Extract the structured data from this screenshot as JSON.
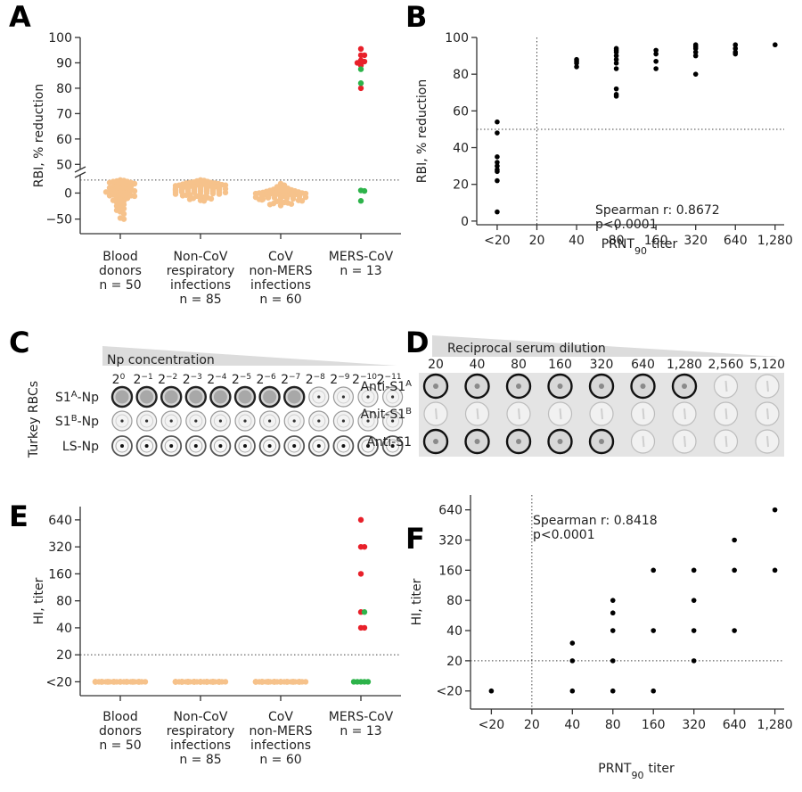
{
  "chart_data": [
    {
      "type": "strip",
      "letter": "A",
      "y_label": "RBI, % reduction",
      "categories": [
        [
          "Blood",
          "donors",
          "n = 50"
        ],
        [
          "Non-CoV",
          "respiratory",
          "infections",
          "n = 85"
        ],
        [
          "CoV",
          "non-MERS",
          "infections",
          "n = 60"
        ],
        [
          "MERS-CoV",
          "n = 13"
        ]
      ],
      "y_segments": [
        {
          "ylim": [
            -78,
            35
          ],
          "yticks": [
            0,
            {
              "value": -50,
              "label": "−50"
            }
          ]
        },
        {
          "ylim": [
            48,
            100
          ],
          "yticks": [
            50,
            60,
            70,
            80,
            90,
            100
          ]
        }
      ],
      "threshold_y": 25,
      "series": [
        {
          "color": "#f6c28b",
          "values": [
            [
              25,
              24,
              23,
              22,
              22,
              20,
              20,
              18,
              18,
              16,
              15,
              14,
              12,
              12,
              10,
              10,
              8,
              8,
              6,
              5,
              5,
              4,
              3,
              2,
              2,
              0,
              0,
              -2,
              -3,
              -4,
              -5,
              -5,
              -6,
              -8,
              -10,
              -10,
              -12,
              -14,
              -15,
              -18,
              -20,
              -22,
              -25,
              -28,
              -30,
              -33,
              -36,
              -40,
              -48,
              -50
            ],
            [
              25,
              24,
              23,
              22,
              21,
              20,
              20,
              19,
              19,
              18,
              18,
              17,
              17,
              16,
              16,
              15,
              15,
              15,
              14,
              14,
              14,
              13,
              13,
              13,
              12,
              12,
              12,
              12,
              11,
              11,
              11,
              11,
              10,
              10,
              10,
              10,
              10,
              9,
              9,
              9,
              9,
              8,
              8,
              8,
              8,
              7,
              7,
              7,
              7,
              6,
              6,
              6,
              6,
              5,
              5,
              5,
              5,
              4,
              4,
              4,
              3,
              3,
              3,
              2,
              2,
              2,
              1,
              1,
              0,
              0,
              -1,
              -2,
              -2,
              -3,
              -4,
              -5,
              -6,
              -7,
              -8,
              -9,
              -10,
              -11,
              -12,
              -14,
              -15
            ],
            [
              18,
              15,
              12,
              10,
              9,
              8,
              7,
              6,
              5,
              5,
              4,
              3,
              3,
              2,
              2,
              1,
              1,
              0,
              0,
              0,
              -1,
              -1,
              -1,
              -2,
              -2,
              -2,
              -3,
              -3,
              -3,
              -4,
              -4,
              -4,
              -5,
              -5,
              -5,
              -6,
              -6,
              -6,
              -7,
              -7,
              -8,
              -8,
              -9,
              -9,
              -10,
              -10,
              -11,
              -12,
              -12,
              -13,
              -14,
              -15,
              -16,
              -17,
              -18,
              -19,
              -20,
              -21,
              -22,
              -24
            ],
            []
          ]
        },
        {
          "color": "#e8202a",
          "values": [
            [],
            [],
            [],
            [
              95.5,
              93,
              93,
              91,
              90.5,
              90,
              89,
              80
            ]
          ]
        },
        {
          "color": "#2db34a",
          "values": [
            [],
            [],
            [],
            [
              87.5,
              82,
              5,
              4,
              -15
            ]
          ]
        }
      ]
    },
    {
      "type": "scatter",
      "letter": "B",
      "y_label": "RBI, % reduction",
      "x_label": {
        "text": "PRNT",
        "sub": "90",
        "tail": "titer"
      },
      "xscale": "log",
      "xlim": [
        7,
        1500
      ],
      "xticks": [
        {
          "value": 10,
          "label": "<20"
        },
        20,
        40,
        80,
        160,
        320,
        640,
        {
          "value": 1280,
          "label": "1,280"
        }
      ],
      "ylim": [
        -2,
        100
      ],
      "yticks": [
        0,
        20,
        40,
        60,
        80,
        100
      ],
      "threshold_x": 20,
      "threshold_y": 50,
      "annotation": [
        "Spearman r: 0.8672",
        "p<0.0001"
      ],
      "series": [
        {
          "color": "#000000",
          "x": [
            10,
            10,
            10,
            10,
            10,
            10,
            10,
            10,
            10,
            40,
            40,
            40,
            40,
            80,
            80,
            80,
            80,
            80,
            80,
            80,
            80,
            80,
            80,
            160,
            160,
            160,
            160,
            320,
            320,
            320,
            320,
            320,
            320,
            640,
            640,
            640,
            640,
            1280
          ],
          "values": [
            54,
            48,
            35,
            32,
            30,
            28,
            27,
            22,
            5,
            88,
            87,
            86,
            84,
            94,
            93,
            92,
            90,
            88,
            86,
            83,
            72,
            69,
            68,
            93,
            91,
            87,
            83,
            96,
            95,
            94,
            92,
            90,
            80,
            96,
            94,
            92,
            91,
            96
          ]
        }
      ]
    },
    {
      "type": "strip",
      "letter": "E",
      "y_label": "HI, titer",
      "categories": [
        [
          "Blood",
          "donors",
          "n = 50"
        ],
        [
          "Non-CoV",
          "respiratory",
          "infections",
          "n = 85"
        ],
        [
          "CoV",
          "non-MERS",
          "infections",
          "n = 60"
        ],
        [
          "MERS-CoV",
          "n = 13"
        ]
      ],
      "yscale": "log",
      "ylim": [
        7,
        900
      ],
      "yticks": [
        {
          "value": 10,
          "label": "<20"
        },
        20,
        40,
        80,
        160,
        320,
        640
      ],
      "threshold_y": 20,
      "series": [
        {
          "color": "#f6c28b",
          "values": [
            [
              10,
              10,
              10,
              10,
              10,
              10,
              10,
              10,
              10,
              10,
              10,
              10,
              10,
              10,
              10,
              10,
              10,
              10,
              10,
              10,
              10,
              10,
              10,
              10,
              10,
              10,
              10,
              10,
              10,
              10,
              10,
              10,
              10,
              10,
              10,
              10,
              10,
              10,
              10,
              10,
              10,
              10,
              10,
              10,
              10,
              10,
              10,
              10,
              10,
              10
            ],
            [
              10,
              10,
              10,
              10,
              10,
              10,
              10,
              10,
              10,
              10,
              10,
              10,
              10,
              10,
              10,
              10,
              10,
              10,
              10,
              10,
              10,
              10,
              10,
              10,
              10,
              10,
              10,
              10,
              10,
              10,
              10,
              10,
              10,
              10,
              10,
              10,
              10,
              10,
              10,
              10,
              10,
              10,
              10,
              10,
              10,
              10,
              10,
              10,
              10,
              10,
              10,
              10,
              10,
              10,
              10,
              10,
              10,
              10,
              10,
              10,
              10,
              10,
              10,
              10,
              10,
              10,
              10,
              10,
              10,
              10,
              10,
              10,
              10,
              10,
              10,
              10,
              10,
              10,
              10,
              10,
              10,
              10,
              10,
              10,
              10
            ],
            [
              10,
              10,
              10,
              10,
              10,
              10,
              10,
              10,
              10,
              10,
              10,
              10,
              10,
              10,
              10,
              10,
              10,
              10,
              10,
              10,
              10,
              10,
              10,
              10,
              10,
              10,
              10,
              10,
              10,
              10,
              10,
              10,
              10,
              10,
              10,
              10,
              10,
              10,
              10,
              10,
              10,
              10,
              10,
              10,
              10,
              10,
              10,
              10,
              10,
              10,
              10,
              10,
              10,
              10,
              10,
              10,
              10,
              10,
              10,
              10
            ],
            []
          ]
        },
        {
          "color": "#e8202a",
          "values": [
            [],
            [],
            [],
            [
              640,
              320,
              320,
              160,
              60,
              40,
              40
            ]
          ]
        },
        {
          "color": "#2db34a",
          "values": [
            [],
            [],
            [],
            [
              60,
              10,
              10,
              10,
              10,
              10
            ]
          ]
        }
      ]
    },
    {
      "type": "scatter",
      "letter": "F",
      "y_label": "HI, titer",
      "x_label": {
        "text": "PRNT",
        "sub": "90",
        "tail": "titer"
      },
      "xscale": "log",
      "xlim": [
        7,
        1500
      ],
      "xticks": [
        {
          "value": 10,
          "label": "<20"
        },
        20,
        40,
        80,
        160,
        320,
        640,
        {
          "value": 1280,
          "label": "1,280"
        }
      ],
      "yscale": "log",
      "ylim": [
        6.6,
        900
      ],
      "yticks": [
        {
          "value": 10,
          "label": "<20"
        },
        20,
        40,
        80,
        160,
        320,
        640
      ],
      "threshold_x": 20,
      "threshold_y": 20,
      "annotation": [
        "Spearman r: 0.8418",
        "p<0.0001"
      ],
      "series": [
        {
          "color": "#000000",
          "x": [
            10,
            40,
            40,
            40,
            80,
            80,
            80,
            80,
            80,
            160,
            160,
            160,
            320,
            320,
            320,
            320,
            640,
            640,
            640,
            1280,
            1280
          ],
          "values": [
            10,
            30,
            20,
            10,
            80,
            60,
            40,
            20,
            10,
            160,
            40,
            10,
            160,
            80,
            40,
            20,
            320,
            160,
            40,
            640,
            160
          ]
        }
      ]
    }
  ],
  "plates": [
    {
      "letter": "C",
      "side_label": "Turkey RBCs",
      "header": "Np concentration",
      "base": "2",
      "exponents": [
        "0",
        "−1",
        "−2",
        "−3",
        "−4",
        "−5",
        "−6",
        "−7",
        "−8",
        "−9",
        "−10",
        "−11"
      ],
      "rows": [
        {
          "name": "S1",
          "sup": "A",
          "tail": "-Np"
        },
        {
          "name": "S1",
          "sup": "B",
          "tail": "-Np"
        },
        {
          "name": "LS-Np"
        }
      ]
    },
    {
      "letter": "D",
      "header": "Reciprocal serum dilution",
      "dilutions": [
        "20",
        "40",
        "80",
        "160",
        "320",
        "640",
        "1,280",
        "2,560",
        "5,120"
      ],
      "rows": [
        {
          "name": "Anti-S1",
          "sup": "A"
        },
        {
          "name": "Anit-S1",
          "sup": "B"
        },
        {
          "name": "Anti-S1"
        }
      ]
    }
  ]
}
